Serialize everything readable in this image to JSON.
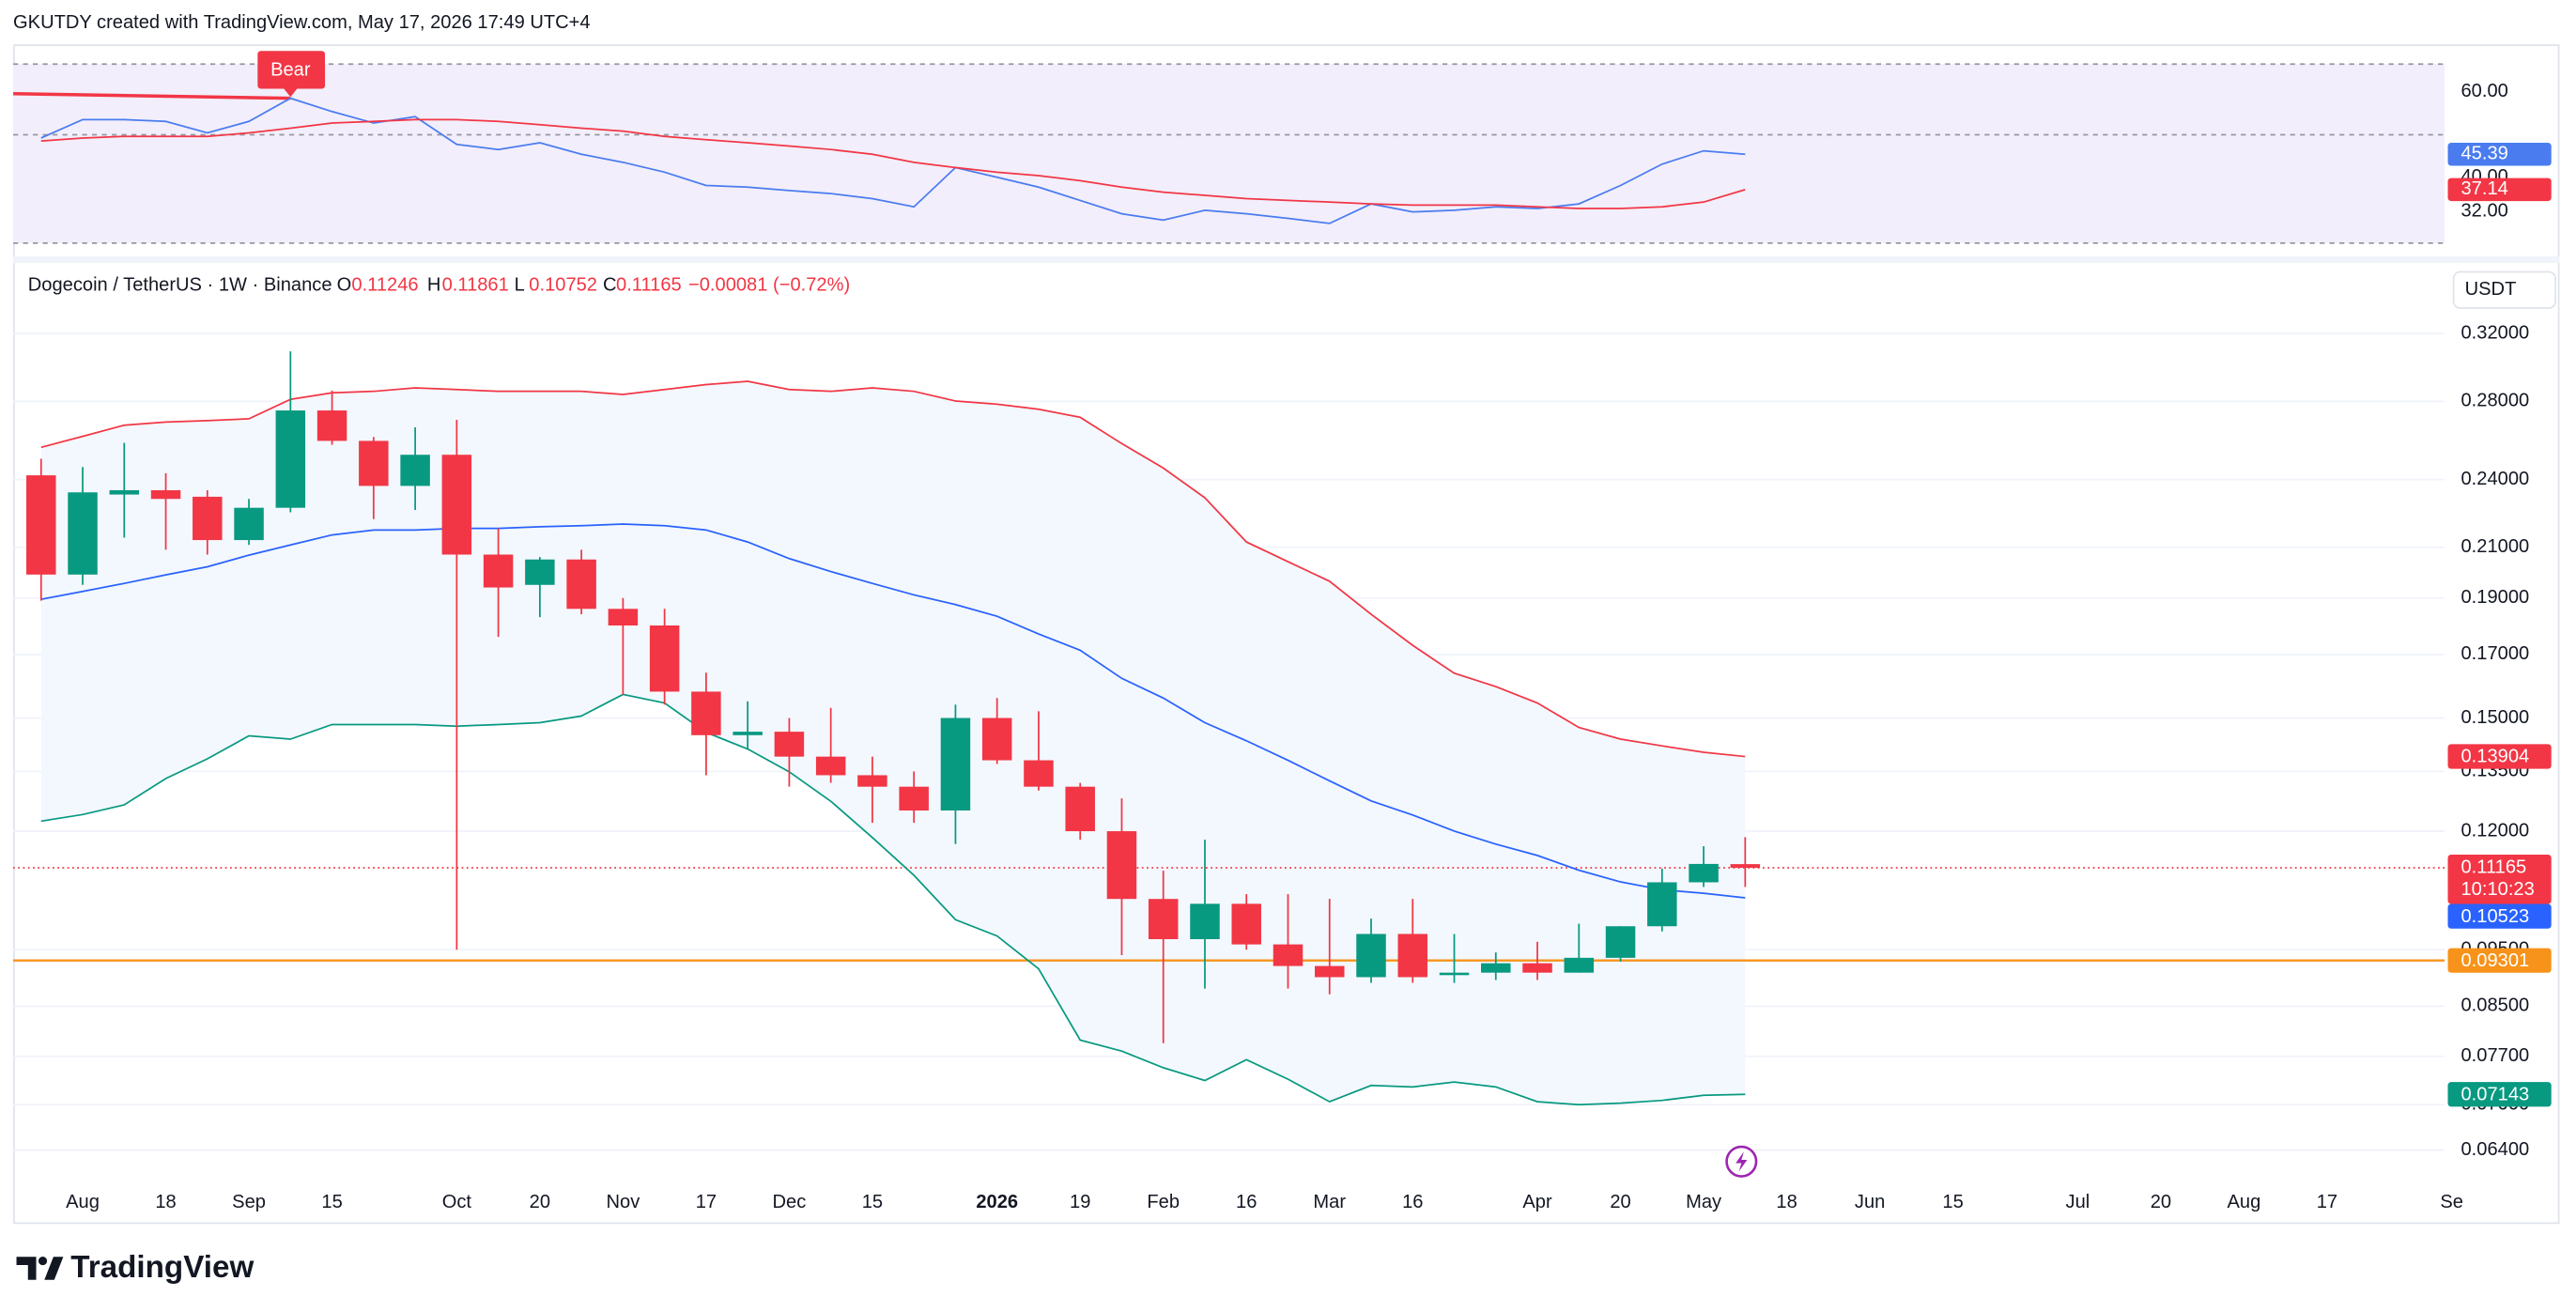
{
  "header": {
    "credit": "GKUTDY created with TradingView.com, May 17, 2026 17:49 UTC+4"
  },
  "chart_data": {
    "type": "candlestick",
    "title": "Dogecoin / TetherUS · 1W · Binance",
    "ohlc_labels": [
      "O",
      "H",
      "L",
      "C"
    ],
    "change": "−0.00081 (−0.72%)",
    "currency": "USDT",
    "countdown": "10:10:23",
    "categories": [
      null,
      "Aug",
      null,
      "18",
      null,
      "Sep",
      null,
      "15",
      null,
      null,
      "Oct",
      null,
      "20",
      null,
      "Nov",
      null,
      "17",
      null,
      "Dec",
      null,
      "15",
      null,
      null,
      "2026",
      null,
      "19",
      null,
      "Feb",
      null,
      "16",
      null,
      "Mar",
      null,
      "16",
      null,
      null,
      "Apr",
      null,
      "20",
      null,
      "May",
      null,
      "18",
      null,
      "Jun",
      null,
      "15",
      null,
      null,
      "Jul",
      null,
      "20",
      null,
      "Aug",
      null,
      "17",
      null,
      null,
      "Se"
    ],
    "open": [
      0.242,
      0.199,
      0.233,
      0.235,
      0.232,
      0.213,
      0.227,
      0.275,
      0.259,
      0.237,
      0.252,
      0.207,
      0.195,
      0.205,
      0.186,
      0.18,
      0.158,
      0.145,
      0.146,
      0.139,
      0.134,
      0.131,
      0.125,
      0.15,
      0.138,
      0.131,
      0.12,
      0.105,
      0.097,
      0.104,
      0.096,
      0.092,
      0.09,
      0.098,
      0.0905,
      0.0908,
      0.0925,
      0.0908,
      0.0935,
      0.0995,
      0.1085,
      0.11246,
      null,
      null,
      null,
      null,
      null,
      null,
      null,
      null,
      null,
      null,
      null,
      null,
      null,
      null,
      null,
      null,
      null
    ],
    "high": [
      0.25,
      0.246,
      0.258,
      0.243,
      0.235,
      0.231,
      0.309,
      0.286,
      0.261,
      0.266,
      0.27,
      0.218,
      0.206,
      0.209,
      0.19,
      0.186,
      0.164,
      0.155,
      0.15,
      0.153,
      0.139,
      0.135,
      0.154,
      0.156,
      0.152,
      0.132,
      0.128,
      0.111,
      0.118,
      0.106,
      0.106,
      0.105,
      0.101,
      0.105,
      0.098,
      0.0945,
      0.0965,
      0.1,
      0.0995,
      0.1115,
      0.1165,
      0.11861,
      null,
      null,
      null,
      null,
      null,
      null,
      null,
      null,
      null,
      null,
      null,
      null,
      null,
      null,
      null,
      null,
      null
    ],
    "low": [
      0.189,
      0.195,
      0.214,
      0.209,
      0.207,
      0.211,
      0.225,
      0.257,
      0.222,
      0.226,
      0.095,
      0.176,
      0.183,
      0.184,
      0.157,
      0.154,
      0.134,
      0.141,
      0.131,
      0.132,
      0.122,
      0.122,
      0.117,
      0.137,
      0.13,
      0.118,
      0.094,
      0.079,
      0.088,
      0.095,
      0.088,
      0.087,
      0.089,
      0.089,
      0.089,
      0.0895,
      0.0895,
      0.0908,
      0.0928,
      0.0985,
      0.1075,
      0.10752,
      null,
      null,
      null,
      null,
      null,
      null,
      null,
      null,
      null,
      null,
      null,
      null,
      null,
      null,
      null,
      null,
      null
    ],
    "close": [
      0.199,
      0.234,
      0.235,
      0.231,
      0.213,
      0.227,
      0.275,
      0.259,
      0.237,
      0.252,
      0.207,
      0.194,
      0.205,
      0.186,
      0.18,
      0.158,
      0.145,
      0.146,
      0.139,
      0.134,
      0.131,
      0.125,
      0.15,
      0.138,
      0.131,
      0.12,
      0.105,
      0.097,
      0.104,
      0.096,
      0.092,
      0.09,
      0.098,
      0.09,
      0.0908,
      0.0925,
      0.0908,
      0.0935,
      0.0995,
      0.1085,
      0.1125,
      0.11165,
      null,
      null,
      null,
      null,
      null,
      null,
      null,
      null,
      null,
      null,
      null,
      null,
      null,
      null,
      null,
      null,
      null
    ],
    "up_color": "#089981",
    "down_color": "#f23645",
    "bands": [
      {
        "color": "#f23645",
        "values": [
          0.2557,
          0.2613,
          0.2671,
          0.2688,
          0.2696,
          0.2705,
          0.2811,
          0.2847,
          0.2856,
          0.2875,
          0.2866,
          0.2856,
          0.2856,
          0.2856,
          0.2838,
          0.2866,
          0.2894,
          0.2913,
          0.2866,
          0.2856,
          0.2875,
          0.2856,
          0.2802,
          0.2784,
          0.2757,
          0.2713,
          0.2576,
          0.2455,
          0.2315,
          0.2122,
          0.2041,
          0.1964,
          0.184,
          0.1731,
          0.1638,
          0.1596,
          0.1545,
          0.1472,
          0.1439,
          0.142,
          0.1402,
          0.13904,
          null,
          null,
          null,
          null,
          null,
          null,
          null,
          null,
          null,
          null,
          null,
          null,
          null,
          null,
          null,
          null,
          null
        ]
      },
      {
        "color": "#2962ff",
        "values": [
          0.1895,
          0.1925,
          0.1956,
          0.1989,
          0.2021,
          0.2068,
          0.211,
          0.2152,
          0.2173,
          0.2173,
          0.218,
          0.218,
          0.2187,
          0.2191,
          0.2198,
          0.2191,
          0.2173,
          0.2122,
          0.2054,
          0.2002,
          0.1956,
          0.1912,
          0.1876,
          0.1833,
          0.177,
          0.1714,
          0.1622,
          0.156,
          0.1486,
          0.1434,
          0.138,
          0.1325,
          0.1274,
          0.1239,
          0.12,
          0.117,
          0.1144,
          0.1111,
          0.1086,
          0.1069,
          0.1062,
          0.10523,
          null,
          null,
          null,
          null,
          null,
          null,
          null,
          null,
          null,
          null,
          null,
          null,
          null,
          null,
          null,
          null,
          null
        ]
      },
      {
        "color": "#089981",
        "values": [
          0.1224,
          0.124,
          0.1264,
          0.1331,
          0.1384,
          0.1448,
          0.1439,
          0.1481,
          0.1481,
          0.1481,
          0.1476,
          0.1481,
          0.1486,
          0.1506,
          0.1571,
          0.1545,
          0.1458,
          0.1411,
          0.1349,
          0.1273,
          0.1185,
          0.11,
          0.1008,
          0.0976,
          0.0915,
          0.0795,
          0.0778,
          0.0753,
          0.0734,
          0.0765,
          0.0736,
          0.0704,
          0.0727,
          0.0725,
          0.0732,
          0.0725,
          0.0704,
          0.07,
          0.0702,
          0.0706,
          0.0713,
          0.07143,
          null,
          null,
          null,
          null,
          null,
          null,
          null,
          null,
          null,
          null,
          null,
          null,
          null,
          null,
          null,
          null,
          null
        ]
      }
    ],
    "band_fill": "#f3f8fe",
    "hline": {
      "value": 0.09301,
      "color": "#f7931a"
    },
    "log_scale": true,
    "grid": true,
    "ylim": [
      0.06,
      0.3338
    ],
    "yticks": [
      {
        "value": 0.32,
        "label": "0.32000"
      },
      {
        "value": 0.28,
        "label": "0.28000"
      },
      {
        "value": 0.24,
        "label": "0.24000"
      },
      {
        "value": 0.21,
        "label": "0.21000"
      },
      {
        "value": 0.19,
        "label": "0.19000"
      },
      {
        "value": 0.17,
        "label": "0.17000"
      },
      {
        "value": 0.15,
        "label": "0.15000"
      },
      {
        "value": 0.135,
        "label": "0.13500"
      },
      {
        "value": 0.12,
        "label": "0.12000"
      },
      {
        "value": 0.095,
        "label": "0.09500"
      },
      {
        "value": 0.085,
        "label": "0.08500"
      },
      {
        "value": 0.077,
        "label": "0.07700"
      },
      {
        "value": 0.07,
        "label": "0.07000"
      },
      {
        "value": 0.064,
        "label": "0.06400"
      }
    ],
    "indicator": {
      "type": "line",
      "annotation": "Bear",
      "ylim": [
        24.6,
        66.5
      ],
      "yticks": [
        {
          "value": 60,
          "label": "60.00"
        },
        {
          "value": 40,
          "label": "40.00"
        },
        {
          "value": 32,
          "label": "32.00"
        }
      ],
      "series": [
        {
          "color": "#4a7cf0",
          "values": [
            49.2,
            53.5,
            53.5,
            53.1,
            50.4,
            53.1,
            58.5,
            55.4,
            52.7,
            54.2,
            47.7,
            46.5,
            48.1,
            45.4,
            43.5,
            41.2,
            38.1,
            37.7,
            36.9,
            36.2,
            35.0,
            33.1,
            42.3,
            40.0,
            37.7,
            34.6,
            31.5,
            30.0,
            32.3,
            31.5,
            30.4,
            29.2,
            33.8,
            31.9,
            32.3,
            33.1,
            32.7,
            33.8,
            38.1,
            43.1,
            46.2,
            45.39,
            null,
            null,
            null,
            null,
            null,
            null,
            null,
            null,
            null,
            null,
            null,
            null,
            null,
            null,
            null,
            null,
            null
          ]
        },
        {
          "color": "#f23645",
          "values": [
            48.5,
            49.2,
            49.6,
            49.6,
            49.6,
            50.4,
            51.5,
            52.7,
            53.1,
            53.5,
            53.5,
            53.1,
            52.3,
            51.5,
            50.8,
            49.6,
            48.8,
            48.1,
            47.3,
            46.5,
            45.4,
            43.5,
            42.3,
            41.2,
            40.4,
            39.2,
            37.7,
            36.5,
            35.8,
            35.0,
            34.6,
            34.2,
            33.8,
            33.5,
            33.5,
            33.5,
            33.1,
            32.7,
            32.7,
            33.1,
            34.2,
            37.14,
            null,
            null,
            null,
            null,
            null,
            null,
            null,
            null,
            null,
            null,
            null,
            null,
            null,
            null,
            null,
            null,
            null
          ]
        }
      ]
    }
  },
  "footer": {
    "logo": "TradingView"
  }
}
